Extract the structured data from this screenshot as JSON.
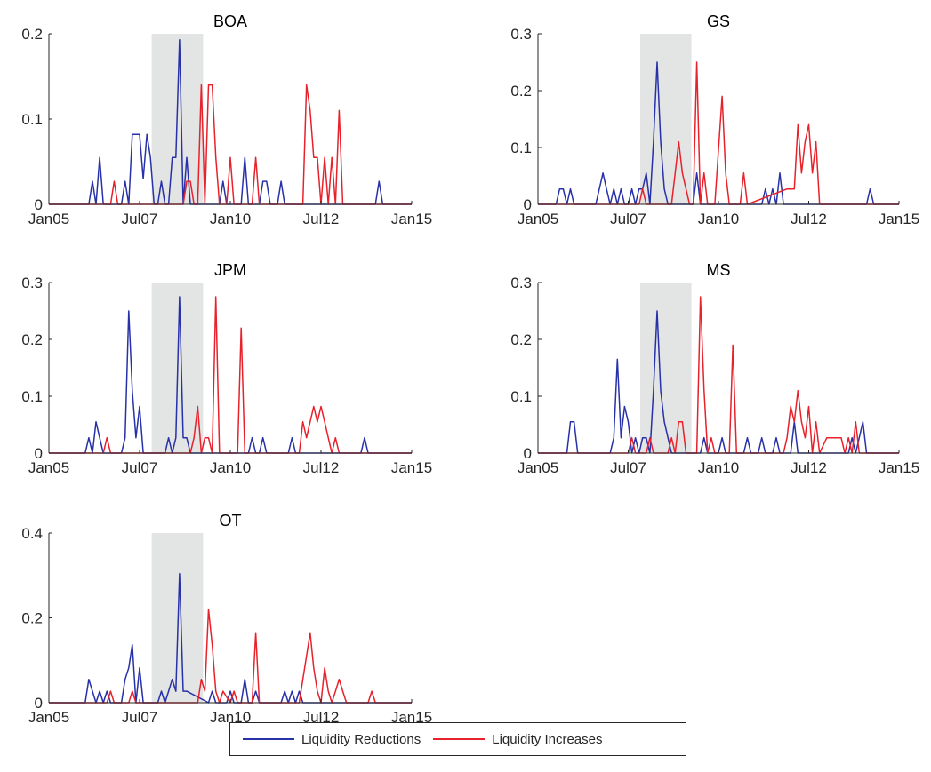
{
  "colors": {
    "reductions": "#2731a8",
    "increases": "#e8212b",
    "shade": "#e3e4e4",
    "axis": "#262626"
  },
  "legend": {
    "reductions_label": "Liquidity Reductions",
    "increases_label": "Liquidity Increases"
  },
  "chart_data": [
    {
      "type": "line",
      "title": "BOA",
      "xlim": [
        2005.0,
        2015.0
      ],
      "ylim": [
        0,
        0.2
      ],
      "yticks": [
        0,
        0.1,
        0.2
      ],
      "ytick_labels": [
        "0",
        "0.1",
        "0.2"
      ],
      "xticks": [
        2005.0,
        2007.5,
        2010.0,
        2012.5,
        2015.0
      ],
      "xtick_labels": [
        "Jan05",
        "Jul07",
        "Jan10",
        "Jul12",
        "Jan15"
      ],
      "shaded_range": [
        2007.833,
        2009.25
      ],
      "series": [
        {
          "name": "Liquidity Reductions",
          "x": [
            2005.0,
            2006.1,
            2006.2,
            2006.3,
            2006.4,
            2006.5,
            2006.6,
            2007.0,
            2007.1,
            2007.2,
            2007.3,
            2007.5,
            2007.6,
            2007.7,
            2007.8,
            2007.9,
            2008.0,
            2008.1,
            2008.2,
            2008.3,
            2008.4,
            2008.5,
            2008.6,
            2008.7,
            2008.8,
            2008.9,
            2009.0,
            2009.1,
            2009.2,
            2009.7,
            2009.8,
            2009.9,
            2010.3,
            2010.4,
            2010.5,
            2010.8,
            2010.9,
            2011.0,
            2011.1,
            2011.3,
            2011.4,
            2011.5,
            2014.0,
            2014.1,
            2014.2,
            2015.0
          ],
          "y": [
            0,
            0,
            0.027,
            0,
            0.055,
            0,
            0,
            0,
            0.027,
            0,
            0.082,
            0.082,
            0.03,
            0.082,
            0.055,
            0,
            0,
            0.027,
            0,
            0,
            0.055,
            0.055,
            0.193,
            0,
            0.055,
            0,
            0,
            0,
            0,
            0,
            0.027,
            0,
            0,
            0.055,
            0,
            0,
            0.027,
            0.027,
            0,
            0,
            0.027,
            0,
            0,
            0.027,
            0,
            0
          ]
        },
        {
          "name": "Liquidity Increases",
          "x": [
            2005.0,
            2006.7,
            2006.8,
            2006.9,
            2008.6,
            2008.7,
            2008.8,
            2008.9,
            2009.0,
            2009.1,
            2009.2,
            2009.3,
            2009.4,
            2009.5,
            2009.6,
            2009.7,
            2009.8,
            2009.9,
            2010.0,
            2010.1,
            2010.2,
            2010.6,
            2010.7,
            2010.8,
            2012.0,
            2012.1,
            2012.2,
            2012.3,
            2012.4,
            2012.5,
            2012.6,
            2012.7,
            2012.8,
            2012.9,
            2013.0,
            2013.1,
            2013.2,
            2015.0
          ],
          "y": [
            0,
            0,
            0.027,
            0,
            0,
            0,
            0.027,
            0.027,
            0,
            0,
            0.14,
            0,
            0.14,
            0.14,
            0.055,
            0,
            0,
            0,
            0.055,
            0,
            0,
            0,
            0.055,
            0,
            0,
            0.14,
            0.11,
            0.055,
            0.055,
            0,
            0.055,
            0,
            0.055,
            0,
            0.11,
            0,
            0,
            0
          ]
        }
      ]
    },
    {
      "type": "line",
      "title": "GS",
      "xlim": [
        2005.0,
        2015.0
      ],
      "ylim": [
        0,
        0.3
      ],
      "yticks": [
        0,
        0.1,
        0.2,
        0.3
      ],
      "ytick_labels": [
        "0",
        "0.1",
        "0.2",
        "0.3"
      ],
      "xticks": [
        2005.0,
        2007.5,
        2010.0,
        2012.5,
        2015.0
      ],
      "xtick_labels": [
        "Jan05",
        "Jul07",
        "Jan10",
        "Jul12",
        "Jan15"
      ],
      "shaded_range": [
        2007.833,
        2009.25
      ],
      "series": [
        {
          "name": "Liquidity Reductions",
          "x": [
            2005.0,
            2005.5,
            2005.6,
            2005.7,
            2005.8,
            2005.9,
            2006.0,
            2006.6,
            2006.8,
            2006.9,
            2007.0,
            2007.1,
            2007.2,
            2007.3,
            2007.4,
            2007.5,
            2007.6,
            2007.7,
            2007.8,
            2007.9,
            2008.0,
            2008.1,
            2008.2,
            2008.3,
            2008.4,
            2008.5,
            2008.6,
            2008.7,
            2009.3,
            2009.4,
            2009.5,
            2009.6,
            2009.7,
            2011.2,
            2011.3,
            2011.4,
            2011.5,
            2011.6,
            2011.7,
            2011.8,
            2014.1,
            2014.2,
            2014.3,
            2015.0
          ],
          "y": [
            0,
            0,
            0.027,
            0.027,
            0,
            0.027,
            0,
            0,
            0.055,
            0.027,
            0,
            0.027,
            0,
            0.027,
            0,
            0,
            0.027,
            0,
            0.027,
            0.027,
            0.055,
            0,
            0.11,
            0.25,
            0.11,
            0.027,
            0,
            0,
            0,
            0.055,
            0,
            0,
            0,
            0,
            0.027,
            0,
            0.027,
            0,
            0.055,
            0,
            0,
            0.027,
            0,
            0
          ]
        },
        {
          "name": "Liquidity Increases",
          "x": [
            2005.0,
            2007.8,
            2007.9,
            2008.0,
            2008.7,
            2008.8,
            2008.9,
            2009.0,
            2009.1,
            2009.2,
            2009.3,
            2009.4,
            2009.5,
            2009.6,
            2009.7,
            2009.8,
            2009.9,
            2010.1,
            2010.2,
            2010.3,
            2010.6,
            2010.7,
            2010.8,
            2011.9,
            2012.0,
            2012.1,
            2012.2,
            2012.3,
            2012.4,
            2012.5,
            2012.6,
            2012.7,
            2012.8,
            2015.0
          ],
          "y": [
            0,
            0,
            0.027,
            0,
            0,
            0.055,
            0.11,
            0.055,
            0.027,
            0,
            0,
            0.25,
            0,
            0.055,
            0,
            0,
            0,
            0.19,
            0.055,
            0,
            0,
            0.055,
            0,
            0.027,
            0.027,
            0.027,
            0.14,
            0.055,
            0.11,
            0.14,
            0.055,
            0.11,
            0,
            0
          ]
        }
      ]
    },
    {
      "type": "line",
      "title": "JPM",
      "xlim": [
        2005.0,
        2015.0
      ],
      "ylim": [
        0,
        0.3
      ],
      "yticks": [
        0,
        0.1,
        0.2,
        0.3
      ],
      "ytick_labels": [
        "0",
        "0.1",
        "0.2",
        "0.3"
      ],
      "xticks": [
        2005.0,
        2007.5,
        2010.0,
        2012.5,
        2015.0
      ],
      "xtick_labels": [
        "Jan05",
        "Jul07",
        "Jan10",
        "Jul12",
        "Jan15"
      ],
      "shaded_range": [
        2007.833,
        2009.25
      ],
      "series": [
        {
          "name": "Liquidity Reductions",
          "x": [
            2005.0,
            2006.0,
            2006.1,
            2006.2,
            2006.3,
            2006.4,
            2006.5,
            2007.0,
            2007.1,
            2007.2,
            2007.3,
            2007.4,
            2007.5,
            2007.6,
            2007.7,
            2008.2,
            2008.3,
            2008.4,
            2008.5,
            2008.6,
            2008.7,
            2008.8,
            2008.9,
            2009.0,
            2010.5,
            2010.6,
            2010.7,
            2010.8,
            2010.9,
            2011.0,
            2011.6,
            2011.7,
            2011.8,
            2013.6,
            2013.7,
            2013.8,
            2015.0
          ],
          "y": [
            0,
            0,
            0.027,
            0,
            0.055,
            0.027,
            0,
            0,
            0.027,
            0.25,
            0.11,
            0.027,
            0.082,
            0,
            0,
            0,
            0.027,
            0,
            0.027,
            0.275,
            0.027,
            0.027,
            0,
            0,
            0,
            0.027,
            0,
            0,
            0.027,
            0,
            0,
            0.027,
            0,
            0,
            0.027,
            0,
            0
          ]
        },
        {
          "name": "Liquidity Increases",
          "x": [
            2005.0,
            2006.5,
            2006.6,
            2006.7,
            2008.9,
            2009.0,
            2009.1,
            2009.2,
            2009.3,
            2009.4,
            2009.5,
            2009.6,
            2009.7,
            2009.8,
            2010.2,
            2010.3,
            2010.4,
            2011.9,
            2012.0,
            2012.1,
            2012.2,
            2012.3,
            2012.4,
            2012.5,
            2012.6,
            2012.7,
            2012.8,
            2012.9,
            2013.0,
            2015.0
          ],
          "y": [
            0,
            0,
            0.027,
            0,
            0,
            0.027,
            0.082,
            0,
            0.027,
            0.027,
            0,
            0.275,
            0,
            0,
            0,
            0.22,
            0,
            0,
            0.055,
            0.027,
            0.055,
            0.082,
            0.055,
            0.082,
            0.055,
            0.027,
            0,
            0.027,
            0,
            0
          ]
        }
      ]
    },
    {
      "type": "line",
      "title": "MS",
      "xlim": [
        2005.0,
        2015.0
      ],
      "ylim": [
        0,
        0.3
      ],
      "yticks": [
        0,
        0.1,
        0.2,
        0.3
      ],
      "ytick_labels": [
        "0",
        "0.1",
        "0.2",
        "0.3"
      ],
      "xticks": [
        2005.0,
        2007.5,
        2010.0,
        2012.5,
        2015.0
      ],
      "xtick_labels": [
        "Jan05",
        "Jul07",
        "Jan10",
        "Jul12",
        "Jan15"
      ],
      "shaded_range": [
        2007.833,
        2009.25
      ],
      "series": [
        {
          "name": "Liquidity Reductions",
          "x": [
            2005.0,
            2005.8,
            2005.9,
            2006.0,
            2006.1,
            2007.0,
            2007.1,
            2007.2,
            2007.3,
            2007.4,
            2007.5,
            2007.6,
            2007.7,
            2007.8,
            2007.9,
            2008.0,
            2008.1,
            2008.2,
            2008.3,
            2008.4,
            2008.5,
            2008.6,
            2008.7,
            2009.5,
            2009.6,
            2009.7,
            2010.0,
            2010.1,
            2010.2,
            2010.7,
            2010.8,
            2010.9,
            2011.1,
            2011.2,
            2011.3,
            2011.5,
            2011.6,
            2011.7,
            2012.0,
            2012.1,
            2012.2,
            2013.6,
            2013.7,
            2013.8,
            2013.9,
            2014.0,
            2014.1,
            2015.0
          ],
          "y": [
            0,
            0,
            0.055,
            0.055,
            0,
            0,
            0.027,
            0.165,
            0.027,
            0.082,
            0.055,
            0,
            0.027,
            0,
            0.027,
            0.027,
            0,
            0.11,
            0.25,
            0.11,
            0.055,
            0.027,
            0,
            0,
            0.027,
            0,
            0,
            0.027,
            0,
            0,
            0.027,
            0,
            0,
            0.027,
            0,
            0,
            0.027,
            0,
            0,
            0.055,
            0,
            0,
            0.027,
            0,
            0.027,
            0.055,
            0,
            0
          ]
        },
        {
          "name": "Liquidity Increases",
          "x": [
            2005.0,
            2007.5,
            2007.6,
            2007.7,
            2008.0,
            2008.1,
            2008.2,
            2008.6,
            2008.7,
            2008.8,
            2008.9,
            2009.0,
            2009.1,
            2009.2,
            2009.4,
            2009.5,
            2009.6,
            2009.7,
            2009.8,
            2009.9,
            2010.3,
            2010.4,
            2010.5,
            2011.8,
            2011.9,
            2012.0,
            2012.1,
            2012.2,
            2012.3,
            2012.4,
            2012.5,
            2012.6,
            2012.7,
            2012.8,
            2013.0,
            2013.1,
            2013.4,
            2013.5,
            2013.6,
            2013.7,
            2013.8,
            2013.9,
            2014.0,
            2015.0
          ],
          "y": [
            0,
            0,
            0.027,
            0,
            0,
            0.027,
            0,
            0,
            0.027,
            0,
            0.055,
            0.055,
            0,
            0,
            0,
            0.275,
            0.11,
            0,
            0.027,
            0,
            0,
            0.19,
            0,
            0,
            0.027,
            0.082,
            0.055,
            0.11,
            0.055,
            0.027,
            0.082,
            0,
            0.055,
            0,
            0.027,
            0.027,
            0.027,
            0,
            0.027,
            0,
            0.055,
            0,
            0,
            0
          ]
        }
      ]
    },
    {
      "type": "line",
      "title": "OT",
      "xlim": [
        2005.0,
        2015.0
      ],
      "ylim": [
        0,
        0.4
      ],
      "yticks": [
        0,
        0.2,
        0.4
      ],
      "ytick_labels": [
        "0",
        "0.2",
        "0.4"
      ],
      "xticks": [
        2005.0,
        2007.5,
        2010.0,
        2012.5,
        2015.0
      ],
      "xtick_labels": [
        "Jan05",
        "Jul07",
        "Jan10",
        "Jul12",
        "Jan15"
      ],
      "shaded_range": [
        2007.833,
        2009.25
      ],
      "series": [
        {
          "name": "Liquidity Reductions",
          "x": [
            2005.0,
            2006.0,
            2006.1,
            2006.2,
            2006.3,
            2006.4,
            2006.5,
            2006.6,
            2006.7,
            2007.0,
            2007.1,
            2007.2,
            2007.3,
            2007.4,
            2007.5,
            2007.6,
            2007.7,
            2008.0,
            2008.1,
            2008.2,
            2008.3,
            2008.4,
            2008.5,
            2008.6,
            2008.7,
            2008.8,
            2009.4,
            2009.5,
            2009.6,
            2009.9,
            2010.0,
            2010.1,
            2010.3,
            2010.4,
            2010.5,
            2010.6,
            2010.7,
            2010.8,
            2011.4,
            2011.5,
            2011.6,
            2011.7,
            2011.8,
            2011.9,
            2012.0,
            2015.0
          ],
          "y": [
            0,
            0,
            0.055,
            0.027,
            0,
            0.027,
            0,
            0.027,
            0,
            0,
            0.055,
            0.082,
            0.137,
            0,
            0.082,
            0,
            0,
            0,
            0.027,
            0,
            0.027,
            0.055,
            0.027,
            0.304,
            0.027,
            0.027,
            0,
            0.027,
            0,
            0,
            0.027,
            0,
            0,
            0.055,
            0,
            0,
            0.027,
            0,
            0,
            0.027,
            0,
            0.027,
            0,
            0.027,
            0,
            0
          ]
        },
        {
          "name": "Liquidity Increases",
          "x": [
            2005.0,
            2006.6,
            2006.7,
            2006.8,
            2007.2,
            2007.3,
            2007.4,
            2009.1,
            2009.2,
            2009.3,
            2009.4,
            2009.5,
            2009.6,
            2009.7,
            2009.8,
            2010.0,
            2010.1,
            2010.2,
            2010.6,
            2010.7,
            2010.8,
            2011.9,
            2012.0,
            2012.1,
            2012.2,
            2012.3,
            2012.4,
            2012.5,
            2012.6,
            2012.7,
            2012.8,
            2012.9,
            2013.0,
            2013.1,
            2013.2,
            2013.3,
            2013.8,
            2013.9,
            2014.0,
            2015.0
          ],
          "y": [
            0,
            0,
            0.027,
            0,
            0,
            0.027,
            0,
            0,
            0.055,
            0.027,
            0.22,
            0.137,
            0.027,
            0,
            0.027,
            0,
            0.027,
            0,
            0,
            0.165,
            0,
            0,
            0.055,
            0.11,
            0.165,
            0.082,
            0.027,
            0,
            0.082,
            0.027,
            0,
            0.027,
            0.055,
            0.027,
            0,
            0,
            0,
            0.027,
            0,
            0
          ]
        }
      ]
    }
  ]
}
